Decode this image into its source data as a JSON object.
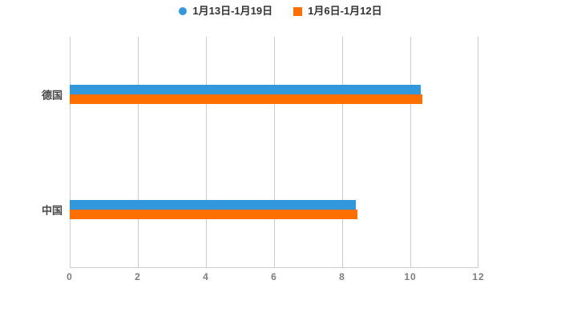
{
  "chart_data": {
    "type": "bar",
    "orientation": "horizontal",
    "title": "",
    "xlabel": "",
    "ylabel": "",
    "categories": [
      "德国",
      "中国"
    ],
    "series": [
      {
        "name": "1月13日-1月19日",
        "color": "#3398db",
        "marker": "circle",
        "values": [
          10.3,
          8.4
        ]
      },
      {
        "name": "1月6日-1月12日",
        "color": "#ff6f00",
        "marker": "square",
        "values": [
          10.35,
          8.45
        ]
      }
    ],
    "xlim": [
      0,
      12
    ],
    "xticks": [
      0,
      2,
      4,
      6,
      8,
      10,
      12
    ],
    "grid": true,
    "legend_position": "top-center",
    "colors": {
      "background": "#ffffff",
      "gridline": "#cccccc",
      "axis_line": "#cccccc",
      "tick_label": "#7d7d7d",
      "category_label": "#474747",
      "legend_text": "#333333"
    }
  }
}
